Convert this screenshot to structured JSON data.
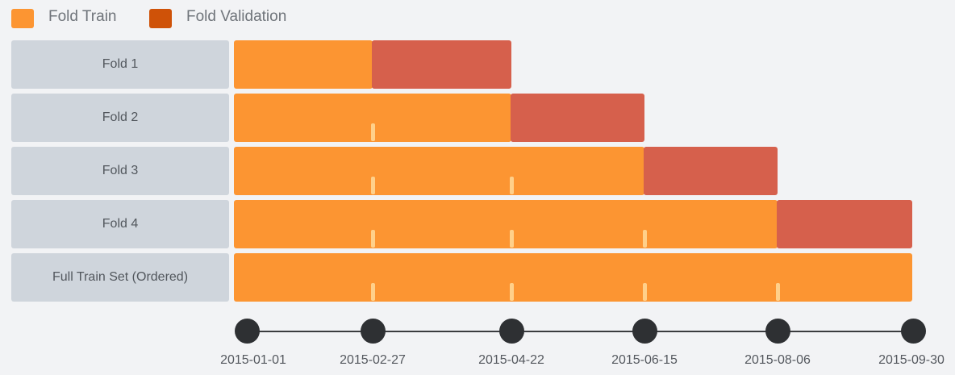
{
  "legend": {
    "train_label": "Fold Train",
    "validation_label": "Fold Validation"
  },
  "colors": {
    "train": "#fc9532",
    "validation": "#d6604c",
    "legend_validation": "#cf5208",
    "label_bg": "#cfd5dc",
    "marker": "#ffd08a",
    "axis_dot": "#2e3033"
  },
  "axis_dates": [
    "2015-01-01",
    "2015-02-27",
    "2015-04-22",
    "2015-06-15",
    "2015-08-06",
    "2015-09-30"
  ],
  "rows": [
    {
      "label": "Fold 1",
      "train_end": "2015-02-27",
      "validation_end": "2015-04-22"
    },
    {
      "label": "Fold 2",
      "train_end": "2015-04-22",
      "validation_end": "2015-06-15"
    },
    {
      "label": "Fold 3",
      "train_end": "2015-06-15",
      "validation_end": "2015-08-06"
    },
    {
      "label": "Fold 4",
      "train_end": "2015-08-06",
      "validation_end": "2015-09-30"
    },
    {
      "label": "Full Train Set (Ordered)",
      "train_end": "2015-09-30",
      "validation_end": ""
    }
  ]
}
